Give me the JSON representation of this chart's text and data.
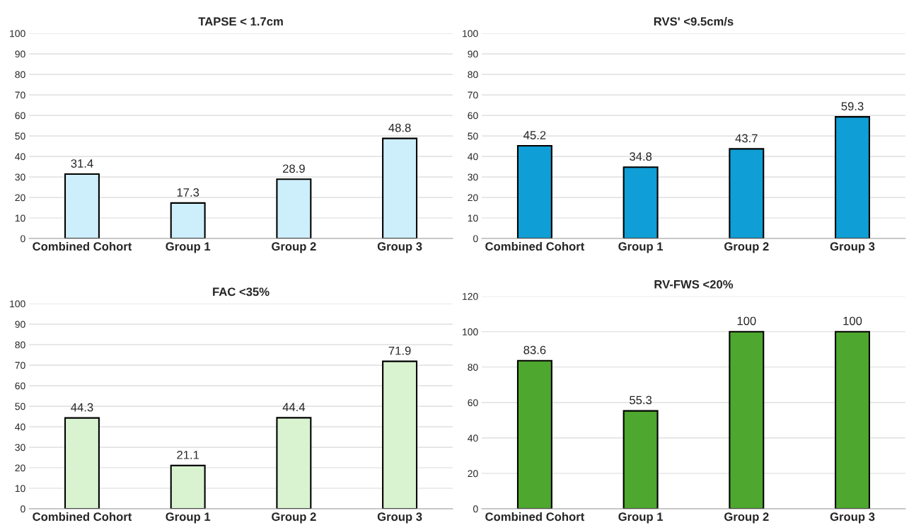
{
  "chart_data": [
    {
      "type": "bar",
      "title": "TAPSE < 1.7cm",
      "categories": [
        "Combined Cohort",
        "Group 1",
        "Group 2",
        "Group 3"
      ],
      "values": [
        31.4,
        17.3,
        28.9,
        48.8
      ],
      "color": "#cdeefb",
      "ylim": [
        0,
        100
      ],
      "yticks": [
        0,
        10,
        20,
        30,
        40,
        50,
        60,
        70,
        80,
        90,
        100
      ],
      "grid": "y",
      "data_labels": true
    },
    {
      "type": "bar",
      "title": "RVS' <9.5cm/s",
      "categories": [
        "Combined Cohort",
        "Group 1",
        "Group 2",
        "Group 3"
      ],
      "values": [
        45.2,
        34.8,
        43.7,
        59.3
      ],
      "color": "#0f9ed5",
      "ylim": [
        0,
        100
      ],
      "yticks": [
        0,
        10,
        20,
        30,
        40,
        50,
        60,
        70,
        80,
        90,
        100
      ],
      "grid": "y",
      "data_labels": true
    },
    {
      "type": "bar",
      "title": "FAC <35%",
      "categories": [
        "Combined Cohort",
        "Group 1",
        "Group 2",
        "Group 3"
      ],
      "values": [
        44.3,
        21.1,
        44.4,
        71.9
      ],
      "color": "#d9f2d0",
      "ylim": [
        0,
        100
      ],
      "yticks": [
        0,
        10,
        20,
        30,
        40,
        50,
        60,
        70,
        80,
        90,
        100
      ],
      "grid": "y",
      "data_labels": true
    },
    {
      "type": "bar",
      "title": "RV-FWS <20%",
      "categories": [
        "Combined Cohort",
        "Group 1",
        "Group 2",
        "Group 3"
      ],
      "values": [
        83.6,
        55.3,
        100,
        100
      ],
      "color": "#4ea72e",
      "ylim": [
        0,
        120
      ],
      "yticks": [
        0,
        20,
        40,
        60,
        80,
        100,
        120
      ],
      "grid": "y",
      "data_labels": true
    }
  ]
}
